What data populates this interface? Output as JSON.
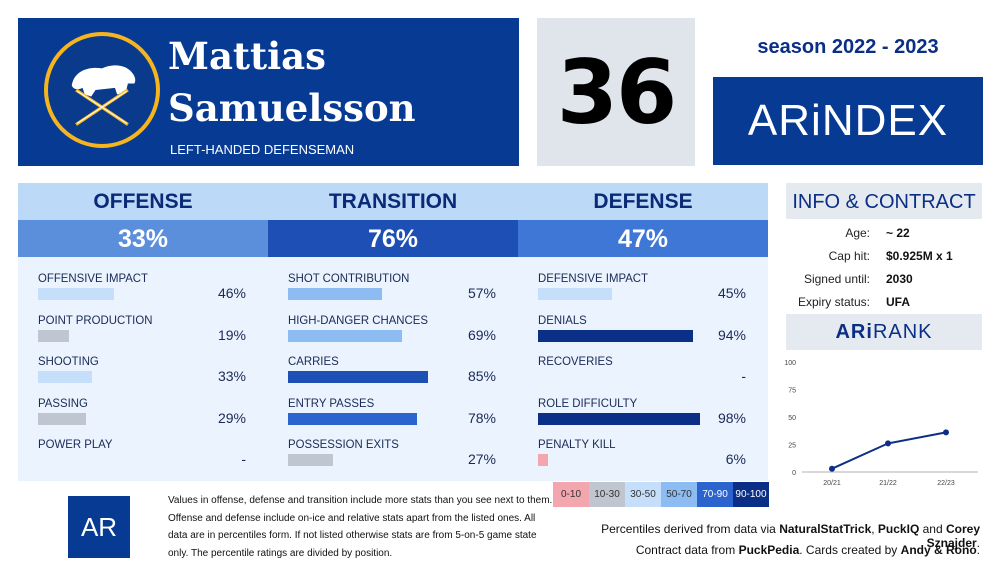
{
  "header": {
    "first_name": "Mattias",
    "last_name": "Samuelsson",
    "position": "LEFT-HANDED DEFENSEMAN",
    "number": "36",
    "season": "season 2022 - 2023",
    "brand": "ARiNDEX",
    "team_logo": "sabres-buffalo-logo"
  },
  "categories": [
    {
      "name": "OFFENSE",
      "percent": "33%",
      "color": "#5b8fdb",
      "stats": [
        {
          "label": "OFFENSIVE IMPACT",
          "value": "46%",
          "level": 46,
          "color": "#c5defa"
        },
        {
          "label": "POINT PRODUCTION",
          "value": "19%",
          "level": 19,
          "color": "#bfc6cf"
        },
        {
          "label": "SHOOTING",
          "value": "33%",
          "level": 33,
          "color": "#c5defa"
        },
        {
          "label": "PASSING",
          "value": "29%",
          "level": 29,
          "color": "#bfc6cf"
        },
        {
          "label": "POWER PLAY",
          "value": "-",
          "level": 0,
          "color": "#eaf3fe"
        }
      ]
    },
    {
      "name": "TRANSITION",
      "percent": "76%",
      "color": "#1d4fb5",
      "stats": [
        {
          "label": "SHOT CONTRIBUTION",
          "value": "57%",
          "level": 57,
          "color": "#8cbcf2"
        },
        {
          "label": "HIGH-DANGER CHANCES",
          "value": "69%",
          "level": 69,
          "color": "#8cbcf2"
        },
        {
          "label": "CARRIES",
          "value": "85%",
          "level": 85,
          "color": "#1d4fb5"
        },
        {
          "label": "ENTRY PASSES",
          "value": "78%",
          "level": 78,
          "color": "#2b63cf"
        },
        {
          "label": "POSSESSION EXITS",
          "value": "27%",
          "level": 27,
          "color": "#bfc6cf"
        }
      ]
    },
    {
      "name": "DEFENSE",
      "percent": "47%",
      "color": "#3f77d6",
      "stats": [
        {
          "label": "DEFENSIVE IMPACT",
          "value": "45%",
          "level": 45,
          "color": "#c5defa"
        },
        {
          "label": "DENIALS",
          "value": "94%",
          "level": 94,
          "color": "#0b2f86"
        },
        {
          "label": "RECOVERIES",
          "value": "-",
          "level": 0,
          "color": "#eaf3fe"
        },
        {
          "label": "ROLE DIFFICULTY",
          "value": "98%",
          "level": 98,
          "color": "#0b2f86"
        },
        {
          "label": "PENALTY KILL",
          "value": "6%",
          "level": 6,
          "color": "#f3a6ad"
        }
      ]
    }
  ],
  "info": {
    "title": "INFO & CONTRACT",
    "rows": [
      {
        "key": "Age:",
        "value": "~ 22"
      },
      {
        "key": "Cap hit:",
        "value": "$0.925M x 1"
      },
      {
        "key": "Signed until:",
        "value": "2030"
      },
      {
        "key": "Expiry status:",
        "value": "UFA"
      }
    ]
  },
  "arirank": {
    "title_bold": "ARi",
    "title_rest": "RANK",
    "chart_data": {
      "type": "line",
      "x": [
        "20/21",
        "21/22",
        "22/23"
      ],
      "values": [
        3,
        26,
        36
      ],
      "yticks": [
        0,
        25,
        50,
        75,
        100
      ],
      "ylim": [
        0,
        100
      ],
      "color": "#0b2f86"
    }
  },
  "legend": [
    {
      "label": "0-10",
      "bg": "#f3a6ad",
      "fg": "#333"
    },
    {
      "label": "10-30",
      "bg": "#bfc6cf",
      "fg": "#333"
    },
    {
      "label": "30-50",
      "bg": "#c5defa",
      "fg": "#333"
    },
    {
      "label": "50-70",
      "bg": "#8cbcf2",
      "fg": "#333"
    },
    {
      "label": "70-90",
      "bg": "#2b63cf",
      "fg": "#fff"
    },
    {
      "label": "90-100",
      "bg": "#0b2f86",
      "fg": "#fff"
    }
  ],
  "footer": {
    "logo_text": "AR",
    "note": "Values in offense, defense and transition include more stats than you see next to them. Offense and defense include on-ice and relative stats apart from the listed ones. All data are in percentiles form. If not listed otherwise stats are from 5-on-5 game state only. The percentile ratings are divided by position.",
    "credit_line1_prefix": "Percentiles derived from data via ",
    "credit_src1": "NaturalStatTrick",
    "credit_sep1": ", ",
    "credit_src2": "PuckIQ",
    "credit_sep2": " and ",
    "credit_src3": "Corey Sznajder",
    "credit_end1": ".",
    "credit_line2_prefix": "Contract data from ",
    "credit_src4": "PuckPedia",
    "credit_mid2": ". Cards created by ",
    "credit_src5": "Andy & Rono",
    "credit_end2": "."
  }
}
